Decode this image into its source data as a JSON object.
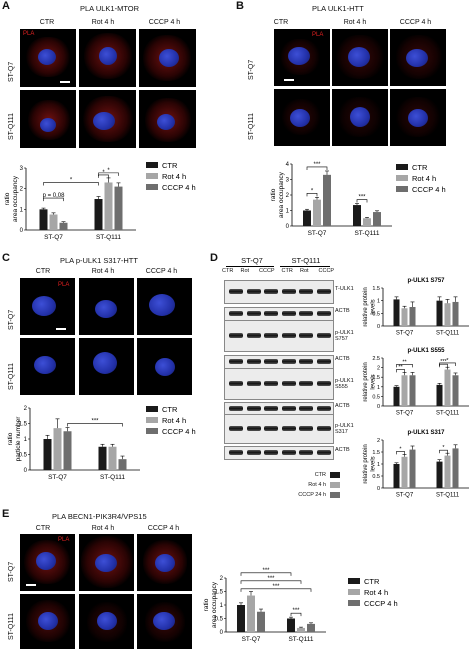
{
  "panels": {
    "A": {
      "letter": "A",
      "title": "PLA ULK1-MTOR",
      "cols": [
        "CTR",
        "Rot 4 h",
        "CCCP 4 h"
      ],
      "rows": [
        "ST-Q7",
        "ST-Q111"
      ],
      "pla": "PLA"
    },
    "B": {
      "letter": "B",
      "title": "PLA ULK1-HTT",
      "cols": [
        "CTR",
        "Rot 4 h",
        "CCCP 4 h"
      ],
      "rows": [
        "ST-Q7",
        "ST-Q111"
      ],
      "pla": "PLA"
    },
    "C": {
      "letter": "C",
      "title": "PLA p-ULK1 S317-HTT",
      "cols": [
        "CTR",
        "Rot 4 h",
        "CCCP 4 h"
      ],
      "rows": [
        "ST-Q7",
        "ST-Q111"
      ],
      "pla": "PLA"
    },
    "D": {
      "letter": "D",
      "groups": [
        "ST-Q7",
        "ST-Q111"
      ],
      "lanes": [
        "CTR",
        "Rot",
        "CCCP",
        "CTR",
        "Rot",
        "CCCP"
      ],
      "blots": [
        "T-ULK1",
        "ACTB",
        "p-ULK1 S757",
        "ACTB",
        "p-ULK1 S555",
        "ACTB",
        "p-ULK1 S317",
        "ACTB"
      ],
      "legend": [
        "CTR",
        "Rot 4 h",
        "CCCP 24 h"
      ]
    },
    "E": {
      "letter": "E",
      "title": "PLA BECN1-PIK3R4/VPS15",
      "cols": [
        "CTR",
        "Rot 4 h",
        "CCCP 4 h"
      ],
      "rows": [
        "ST-Q7",
        "ST-Q111"
      ],
      "pla": "PLA"
    }
  },
  "legend_main": [
    "CTR",
    "Rot 4 h",
    "CCCP 4 h"
  ],
  "colors": {
    "ctr": "#1a1a1a",
    "rot": "#a6a6a6",
    "cccp": "#6e6e6e"
  },
  "chart_data": [
    {
      "id": "A",
      "type": "bar",
      "categories": [
        "ST-Q7",
        "ST-Q111"
      ],
      "series": [
        {
          "name": "CTR",
          "values": [
            1.0,
            1.5
          ]
        },
        {
          "name": "Rot 4 h",
          "values": [
            0.75,
            2.3
          ]
        },
        {
          "name": "CCCP 4 h",
          "values": [
            0.35,
            2.1
          ]
        }
      ],
      "errors": [
        [
          0.06,
          0.12
        ],
        [
          0.08,
          0.22
        ],
        [
          0.05,
          0.18
        ]
      ],
      "ylabel": "ratio\narea occupancy",
      "ylim": [
        0,
        3
      ],
      "annotations": [
        "p = 0,08",
        "*",
        "*",
        "*"
      ]
    },
    {
      "id": "B",
      "type": "bar",
      "categories": [
        "ST-Q7",
        "ST-Q111"
      ],
      "series": [
        {
          "name": "CTR",
          "values": [
            1.0,
            1.35
          ]
        },
        {
          "name": "Rot 4 h",
          "values": [
            1.7,
            0.5
          ]
        },
        {
          "name": "CCCP 4 h",
          "values": [
            3.3,
            0.9
          ]
        }
      ],
      "errors": [
        [
          0.08,
          0.1
        ],
        [
          0.15,
          0.06
        ],
        [
          0.25,
          0.08
        ]
      ],
      "ylabel": "ratio\narea occupancy",
      "ylim": [
        0,
        4
      ],
      "annotations": [
        "***",
        "*",
        "***"
      ]
    },
    {
      "id": "C",
      "type": "bar",
      "categories": [
        "ST-Q7",
        "ST-Q111"
      ],
      "series": [
        {
          "name": "CTR",
          "values": [
            1.0,
            0.75
          ]
        },
        {
          "name": "Rot 4 h",
          "values": [
            1.35,
            0.75
          ]
        },
        {
          "name": "CCCP 4 h",
          "values": [
            1.25,
            0.35
          ]
        }
      ],
      "errors": [
        [
          0.12,
          0.08
        ],
        [
          0.3,
          0.08
        ],
        [
          0.12,
          0.1
        ]
      ],
      "ylabel": "ratio\nparticle number",
      "ylim": [
        0,
        2
      ],
      "annotations": [
        "***"
      ]
    },
    {
      "id": "D1",
      "type": "bar",
      "title": "p-ULK1 S757",
      "categories": [
        "ST-Q7",
        "ST-Q111"
      ],
      "series": [
        {
          "name": "CTR",
          "values": [
            1.05,
            1.0
          ]
        },
        {
          "name": "Rot 4 h",
          "values": [
            0.7,
            0.9
          ]
        },
        {
          "name": "CCCP 24 h",
          "values": [
            0.75,
            0.95
          ]
        }
      ],
      "errors": [
        [
          0.1,
          0.15
        ],
        [
          0.08,
          0.15
        ],
        [
          0.2,
          0.2
        ]
      ],
      "ylabel": "relative protein\nlevels",
      "ylim": [
        0,
        1.5
      ],
      "annotations": []
    },
    {
      "id": "D2",
      "type": "bar",
      "title": "p-ULK1 S555",
      "categories": [
        "ST-Q7",
        "ST-Q111"
      ],
      "series": [
        {
          "name": "CTR",
          "values": [
            1.0,
            1.1
          ]
        },
        {
          "name": "Rot 4 h",
          "values": [
            1.6,
            1.9
          ]
        },
        {
          "name": "CCCP 24 h",
          "values": [
            1.6,
            1.6
          ]
        }
      ],
      "errors": [
        [
          0.06,
          0.08
        ],
        [
          0.15,
          0.12
        ],
        [
          0.15,
          0.12
        ]
      ],
      "ylabel": "relative protein\nlevels",
      "ylim": [
        0,
        2.5
      ],
      "annotations": [
        "**",
        "**",
        "***",
        "*"
      ]
    },
    {
      "id": "D3",
      "type": "bar",
      "title": "p-ULK1 S317",
      "categories": [
        "ST-Q7",
        "ST-Q111"
      ],
      "series": [
        {
          "name": "CTR",
          "values": [
            1.0,
            1.1
          ]
        },
        {
          "name": "Rot 4 h",
          "values": [
            1.3,
            1.35
          ]
        },
        {
          "name": "CCCP 24 h",
          "values": [
            1.6,
            1.65
          ]
        }
      ],
      "errors": [
        [
          0.05,
          0.08
        ],
        [
          0.1,
          0.1
        ],
        [
          0.15,
          0.15
        ]
      ],
      "ylabel": "relative protein\nlevels",
      "ylim": [
        0,
        2
      ],
      "annotations": [
        "*",
        "*"
      ]
    },
    {
      "id": "E",
      "type": "bar",
      "categories": [
        "ST-Q7",
        "ST-Q111"
      ],
      "series": [
        {
          "name": "CTR",
          "values": [
            1.0,
            0.5
          ]
        },
        {
          "name": "Rot 4 h",
          "values": [
            1.35,
            0.15
          ]
        },
        {
          "name": "CCCP 4 h",
          "values": [
            0.75,
            0.3
          ]
        }
      ],
      "errors": [
        [
          0.08,
          0.05
        ],
        [
          0.15,
          0.03
        ],
        [
          0.1,
          0.04
        ]
      ],
      "ylabel": "ratio\narea occupancy",
      "ylim": [
        0,
        2
      ],
      "annotations": [
        "***",
        "***",
        "***",
        "***"
      ]
    }
  ]
}
